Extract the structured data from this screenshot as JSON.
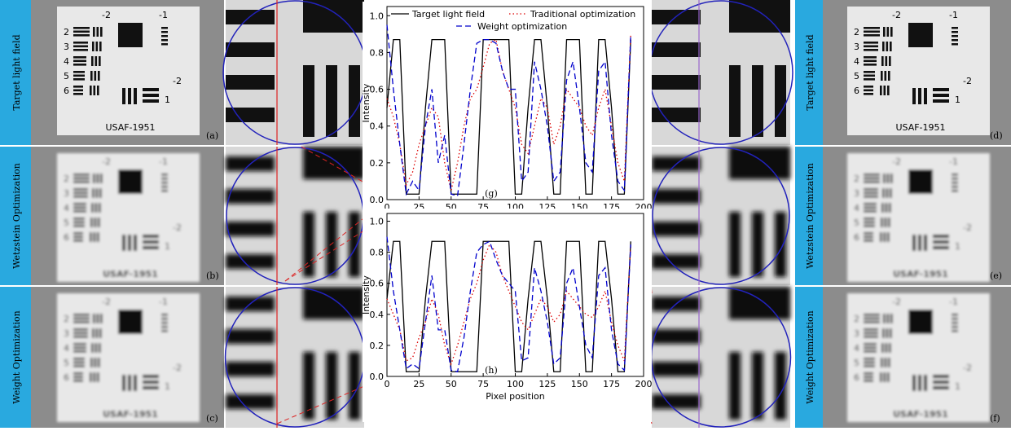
{
  "panels": [
    {
      "row_label": "Target light field",
      "tag": "(a)",
      "right_tag": "(d)"
    },
    {
      "row_label": "Wetzstein Optimization",
      "tag": "(b)",
      "right_tag": "(e)"
    },
    {
      "row_label": "Weight Optimization",
      "tag": "(c)",
      "right_tag": "(f)"
    }
  ],
  "target": {
    "name": "USAF-1951",
    "group_labels": [
      "-2",
      "-1"
    ],
    "element_labels": [
      "2",
      "3",
      "4",
      "5",
      "6"
    ],
    "minor_labels": [
      "-2",
      "1"
    ]
  },
  "chart_data": [
    {
      "type": "line",
      "annotation": "(g)",
      "y_label": "Intensity",
      "legend": true,
      "x": [
        0,
        5,
        10,
        15,
        20,
        25,
        30,
        35,
        40,
        45,
        50,
        55,
        60,
        65,
        70,
        75,
        80,
        85,
        90,
        95,
        100,
        105,
        110,
        115,
        120,
        125,
        130,
        135,
        140,
        145,
        150,
        155,
        160,
        165,
        170,
        175,
        180,
        185,
        190,
        195,
        200
      ],
      "series": [
        {
          "name": "Target light field",
          "color": "#000000",
          "style": "solid",
          "values": [
            0.5,
            0.87,
            0.87,
            0.03,
            0.03,
            0.03,
            0.5,
            0.87,
            0.87,
            0.87,
            0.03,
            0.03,
            0.03,
            0.03,
            0.03,
            0.87,
            0.87,
            0.87,
            0.87,
            0.87,
            0.03,
            0.03,
            0.5,
            0.87,
            0.87,
            0.5,
            0.03,
            0.03,
            0.87,
            0.87,
            0.87,
            0.03,
            0.03,
            0.87,
            0.87,
            0.5,
            0.03,
            0.03,
            0.87,
            null,
            null
          ]
        },
        {
          "name": "Traditional optimization",
          "color": "#dd0000",
          "style": "dotted",
          "values": [
            0.55,
            0.45,
            0.3,
            0.08,
            0.15,
            0.3,
            0.4,
            0.5,
            0.45,
            0.2,
            0.05,
            0.2,
            0.4,
            0.55,
            0.6,
            0.72,
            0.85,
            0.87,
            0.7,
            0.6,
            0.5,
            0.3,
            0.25,
            0.4,
            0.55,
            0.5,
            0.3,
            0.4,
            0.6,
            0.55,
            0.5,
            0.4,
            0.35,
            0.5,
            0.6,
            0.4,
            0.2,
            0.1,
            0.9,
            null,
            null
          ]
        },
        {
          "name": "Weight optimization",
          "color": "#0000cc",
          "style": "dashed",
          "values": [
            0.95,
            0.6,
            0.3,
            0.03,
            0.1,
            0.05,
            0.4,
            0.6,
            0.2,
            0.35,
            0.03,
            0.02,
            0.3,
            0.6,
            0.85,
            0.87,
            0.87,
            0.85,
            0.7,
            0.6,
            0.6,
            0.1,
            0.15,
            0.75,
            0.6,
            0.4,
            0.1,
            0.15,
            0.65,
            0.75,
            0.5,
            0.2,
            0.15,
            0.7,
            0.75,
            0.35,
            0.1,
            0.05,
            0.9,
            null,
            null
          ]
        }
      ],
      "xlim": [
        0,
        200
      ],
      "xticks": [
        0,
        25,
        50,
        75,
        100,
        125,
        150,
        175,
        200
      ],
      "ylim": [
        0,
        1.05
      ],
      "yticks": [
        {
          "value": 0,
          "label": "0.0"
        },
        0.2,
        0.4,
        0.6,
        0.8,
        {
          "value": 1,
          "label": "1.0"
        }
      ]
    },
    {
      "type": "line",
      "annotation": "(h)",
      "y_label": "Intensity",
      "x_label": "Pixel position",
      "legend": false,
      "x": [
        0,
        5,
        10,
        15,
        20,
        25,
        30,
        35,
        40,
        45,
        50,
        55,
        60,
        65,
        70,
        75,
        80,
        85,
        90,
        95,
        100,
        105,
        110,
        115,
        120,
        125,
        130,
        135,
        140,
        145,
        150,
        155,
        160,
        165,
        170,
        175,
        180,
        185,
        190,
        195,
        200
      ],
      "series": [
        {
          "name": "Target light field",
          "color": "#000000",
          "style": "solid",
          "values": [
            0.5,
            0.87,
            0.87,
            0.03,
            0.03,
            0.03,
            0.5,
            0.87,
            0.87,
            0.87,
            0.03,
            0.03,
            0.03,
            0.03,
            0.03,
            0.87,
            0.87,
            0.87,
            0.87,
            0.87,
            0.03,
            0.03,
            0.5,
            0.87,
            0.87,
            0.5,
            0.03,
            0.03,
            0.87,
            0.87,
            0.87,
            0.03,
            0.03,
            0.87,
            0.87,
            0.5,
            0.03,
            0.03,
            0.87,
            null,
            null
          ]
        },
        {
          "name": "Traditional optimization",
          "color": "#dd0000",
          "style": "dotted",
          "values": [
            0.5,
            0.4,
            0.3,
            0.1,
            0.12,
            0.25,
            0.35,
            0.5,
            0.4,
            0.2,
            0.08,
            0.2,
            0.35,
            0.5,
            0.6,
            0.75,
            0.85,
            0.8,
            0.65,
            0.55,
            0.45,
            0.35,
            0.3,
            0.4,
            0.5,
            0.45,
            0.35,
            0.4,
            0.55,
            0.5,
            0.45,
            0.4,
            0.38,
            0.45,
            0.55,
            0.35,
            0.2,
            0.1,
            0.85,
            null,
            null
          ]
        },
        {
          "name": "Weight optimization",
          "color": "#0000cc",
          "style": "dashed",
          "values": [
            0.9,
            0.55,
            0.3,
            0.05,
            0.08,
            0.05,
            0.35,
            0.65,
            0.3,
            0.3,
            0.04,
            0.03,
            0.25,
            0.55,
            0.8,
            0.85,
            0.87,
            0.75,
            0.65,
            0.6,
            0.55,
            0.1,
            0.12,
            0.7,
            0.55,
            0.35,
            0.08,
            0.12,
            0.6,
            0.7,
            0.45,
            0.2,
            0.12,
            0.65,
            0.7,
            0.3,
            0.08,
            0.04,
            0.85,
            null,
            null
          ]
        }
      ],
      "xlim": [
        0,
        200
      ],
      "xticks": [
        0,
        25,
        50,
        75,
        100,
        125,
        150,
        175,
        200
      ],
      "ylim": [
        0,
        1.05
      ],
      "yticks": [
        {
          "value": 0,
          "label": "0.0"
        },
        0.2,
        0.4,
        0.6,
        0.8,
        {
          "value": 1,
          "label": "1.0"
        }
      ]
    }
  ]
}
